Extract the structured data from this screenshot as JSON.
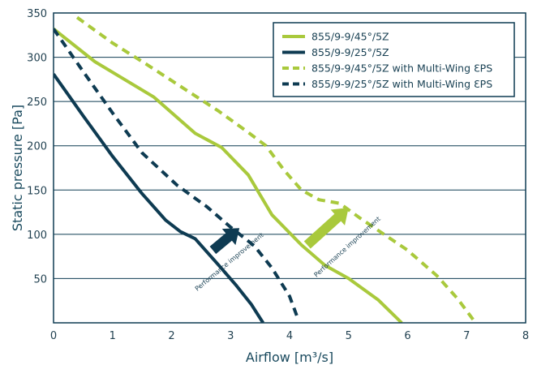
{
  "chart_data": {
    "type": "line",
    "xlabel": "Airflow [m³/s]",
    "ylabel": "Static pressure [Pa]",
    "xlim": [
      0,
      8
    ],
    "ylim": [
      0,
      350
    ],
    "x_ticks": [
      "0",
      "1",
      "2",
      "3",
      "4",
      "5",
      "6",
      "7",
      "8"
    ],
    "y_ticks": [
      "50",
      "100",
      "150",
      "200",
      "250",
      "300",
      "350"
    ],
    "grid": "horizontal",
    "legend_position": "top-right",
    "colors": {
      "green": "#a9c93c",
      "navy": "#0e3b52"
    },
    "series": [
      {
        "name": "855/9-9/45°/5Z",
        "color": "#a9c93c",
        "style": "solid",
        "points": [
          [
            0,
            332
          ],
          [
            0.7,
            295
          ],
          [
            1.7,
            255
          ],
          [
            2.4,
            214
          ],
          [
            2.85,
            198
          ],
          [
            3.3,
            167
          ],
          [
            3.7,
            122
          ],
          [
            4.2,
            88
          ],
          [
            4.6,
            65
          ],
          [
            5.0,
            50
          ],
          [
            5.5,
            26
          ],
          [
            5.9,
            0
          ]
        ]
      },
      {
        "name": "855/9-9/25°/5Z",
        "color": "#0e3b52",
        "style": "solid",
        "points": [
          [
            0,
            281
          ],
          [
            0.5,
            234
          ],
          [
            1.0,
            188
          ],
          [
            1.5,
            146
          ],
          [
            1.9,
            116
          ],
          [
            2.15,
            103
          ],
          [
            2.4,
            95
          ],
          [
            2.8,
            65
          ],
          [
            3.1,
            42
          ],
          [
            3.35,
            21
          ],
          [
            3.55,
            0
          ]
        ]
      },
      {
        "name": "855/9-9/45°/5Z with Multi-Wing ƐPS",
        "color": "#a9c93c",
        "style": "dashed",
        "points": [
          [
            0.4,
            345
          ],
          [
            1.0,
            316
          ],
          [
            1.6,
            291
          ],
          [
            2.2,
            265
          ],
          [
            2.8,
            239
          ],
          [
            3.3,
            215
          ],
          [
            3.6,
            200
          ],
          [
            3.9,
            173
          ],
          [
            4.2,
            150
          ],
          [
            4.5,
            139
          ],
          [
            4.85,
            135
          ],
          [
            5.2,
            118
          ],
          [
            5.6,
            100
          ],
          [
            6.0,
            82
          ],
          [
            6.5,
            53
          ],
          [
            6.85,
            27
          ],
          [
            7.15,
            0
          ]
        ]
      },
      {
        "name": "855/9-9/25°/5Z with Multi-Wing ƐPS",
        "color": "#0e3b52",
        "style": "dashed",
        "points": [
          [
            0,
            332
          ],
          [
            0.5,
            284
          ],
          [
            1.0,
            237
          ],
          [
            1.5,
            192
          ],
          [
            2.1,
            155
          ],
          [
            2.6,
            131
          ],
          [
            3.0,
            108
          ],
          [
            3.4,
            87
          ],
          [
            3.7,
            62
          ],
          [
            4.0,
            30
          ],
          [
            4.15,
            3
          ]
        ]
      }
    ],
    "annotations": [
      {
        "text": "Performance improvement",
        "color": "#0e3b52",
        "from": [
          2.7,
          82
        ],
        "to": [
          3.15,
          107
        ],
        "label_at": [
          3.0,
          67
        ]
      },
      {
        "text": "Performance improvement",
        "color": "#a9c93c",
        "from": [
          4.3,
          88
        ],
        "to": [
          5.0,
          130
        ],
        "label_at": [
          5.0,
          84
        ]
      }
    ]
  }
}
